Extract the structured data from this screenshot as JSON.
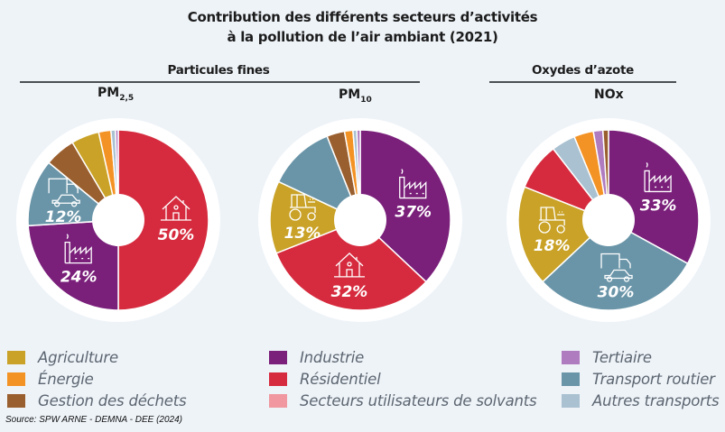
{
  "title_line1": "Contribution des différents secteurs d’activités",
  "title_line2": "à la pollution de l’air ambiant (2021)",
  "groups": {
    "particules": "Particules fines",
    "oxydes": "Oxydes d’azote"
  },
  "subtitles": {
    "pm25_main": "PM",
    "pm25_sub": "2,5",
    "pm10_main": "PM",
    "pm10_sub": "10",
    "nox": "NOx"
  },
  "source": "Source: SPW ARNE - DEMNA - DEE (2024)",
  "colors": {
    "Agriculture": "#c9a227",
    "Énergie": "#f39325",
    "Gestion des déchets": "#9a5f2e",
    "Industrie": "#7a1f7a",
    "Résidentiel": "#d62b3e",
    "Secteurs utilisateurs de solvants": "#f0979f",
    "Tertiaire": "#b07cc0",
    "Transport routier": "#6a95a8",
    "Autres transports": "#a9c1d1"
  },
  "legend": [
    {
      "label": "Agriculture"
    },
    {
      "label": "Énergie"
    },
    {
      "label": "Gestion des déchets"
    },
    {
      "label": "Industrie"
    },
    {
      "label": "Résidentiel"
    },
    {
      "label": "Secteurs utilisateurs de solvants"
    },
    {
      "label": "Tertiaire"
    },
    {
      "label": "Transport routier"
    },
    {
      "label": "Autres transports"
    }
  ],
  "chart_data": [
    {
      "type": "pie",
      "title": "PM2,5",
      "slices": [
        {
          "label": "Résidentiel",
          "value": 50,
          "text": "50%",
          "icon": "house-icon"
        },
        {
          "label": "Industrie",
          "value": 24,
          "text": "24%",
          "icon": "factory-icon"
        },
        {
          "label": "Transport routier",
          "value": 12,
          "text": "12%",
          "icon": "vehicles-icon"
        },
        {
          "label": "Gestion des déchets",
          "value": 5.5
        },
        {
          "label": "Agriculture",
          "value": 5
        },
        {
          "label": "Énergie",
          "value": 2.2
        },
        {
          "label": "Autres transports",
          "value": 0.8
        },
        {
          "label": "Tertiaire",
          "value": 0.5
        }
      ]
    },
    {
      "type": "pie",
      "title": "PM10",
      "slices": [
        {
          "label": "Industrie",
          "value": 37,
          "text": "37%",
          "icon": "factory-icon"
        },
        {
          "label": "Résidentiel",
          "value": 32,
          "text": "32%",
          "icon": "house-icon"
        },
        {
          "label": "Agriculture",
          "value": 13,
          "text": "13%",
          "icon": "tractor-icon"
        },
        {
          "label": "Transport routier",
          "value": 12
        },
        {
          "label": "Gestion des déchets",
          "value": 3.2
        },
        {
          "label": "Énergie",
          "value": 1.5
        },
        {
          "label": "Autres transports",
          "value": 0.7
        },
        {
          "label": "Tertiaire",
          "value": 0.6
        }
      ]
    },
    {
      "type": "pie",
      "title": "NOx",
      "slices": [
        {
          "label": "Industrie",
          "value": 33,
          "text": "33%",
          "icon": "factory-icon"
        },
        {
          "label": "Transport routier",
          "value": 30,
          "text": "30%",
          "icon": "vehicles-icon"
        },
        {
          "label": "Agriculture",
          "value": 18,
          "text": "18%",
          "icon": "tractor-icon"
        },
        {
          "label": "Résidentiel",
          "value": 8.5
        },
        {
          "label": "Autres transports",
          "value": 4.3
        },
        {
          "label": "Énergie",
          "value": 3.5
        },
        {
          "label": "Tertiaire",
          "value": 1.7
        },
        {
          "label": "Gestion des déchets",
          "value": 1
        }
      ]
    }
  ]
}
